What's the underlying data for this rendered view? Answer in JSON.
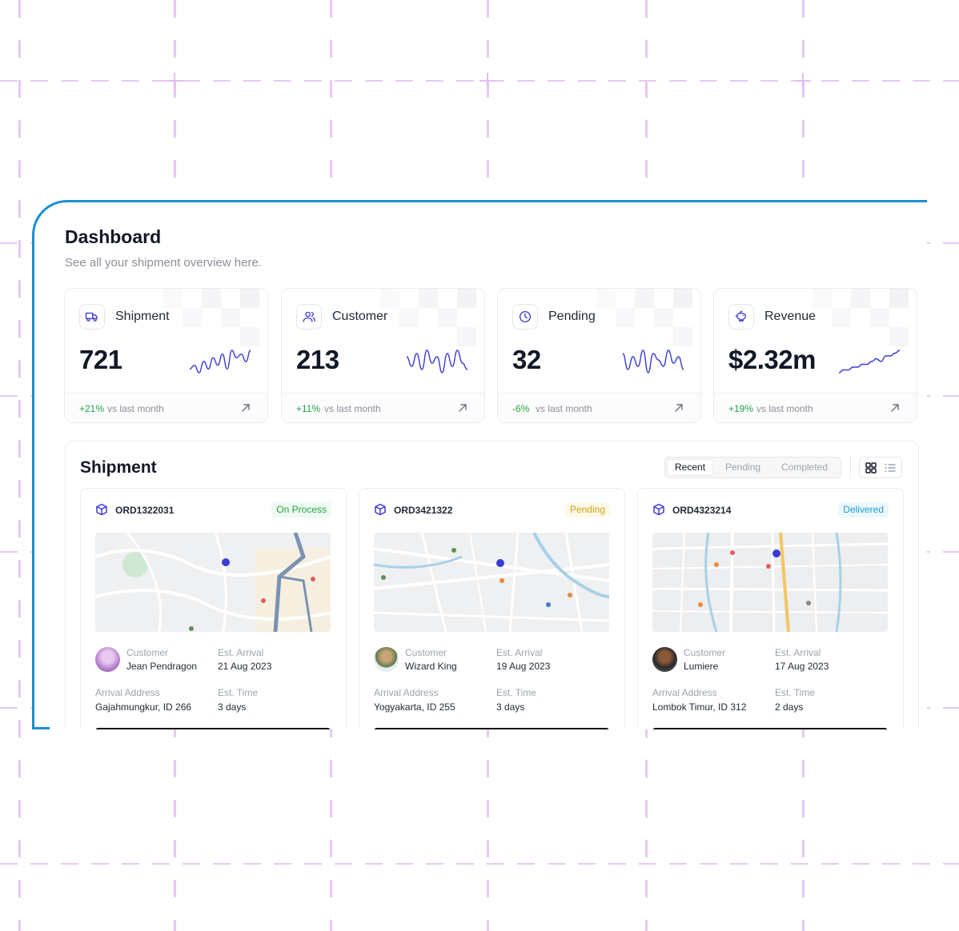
{
  "header": {
    "title": "Dashboard",
    "subtitle": "See all your shipment overview here."
  },
  "stats": [
    {
      "label": "Shipment",
      "value": "721",
      "delta": "+21%",
      "vs": "vs last month",
      "icon": "truck-icon",
      "trend": [
        6,
        5,
        7,
        4,
        6,
        3,
        5,
        2,
        6,
        1,
        3,
        2,
        4,
        1
      ]
    },
    {
      "label": "Customer",
      "value": "213",
      "delta": "+11%",
      "vs": "vs last month",
      "icon": "users-icon",
      "trend": [
        3,
        6,
        2,
        7,
        1,
        5,
        3,
        8,
        2,
        6,
        1,
        5,
        7
      ]
    },
    {
      "label": "Pending",
      "value": "32",
      "delta": "-6%",
      "vs": "vs last month",
      "icon": "clock-icon",
      "trend": [
        2,
        7,
        3,
        6,
        1,
        8,
        2,
        4,
        6,
        1,
        5,
        3,
        7
      ]
    },
    {
      "label": "Revenue",
      "value": "$2.32m",
      "delta": "+19%",
      "vs": "vs last month",
      "icon": "piggy-bank-icon",
      "trend": [
        8,
        7,
        7,
        6,
        6,
        5,
        5,
        4,
        3,
        4,
        2,
        2,
        1,
        0
      ]
    }
  ],
  "shipment_panel": {
    "title": "Shipment",
    "tabs": [
      "Recent",
      "Pending",
      "Completed"
    ],
    "active_tab": "Recent",
    "labels": {
      "customer": "Customer",
      "est_arrival": "Est. Arrival",
      "arrival_address": "Arrival Address",
      "est_time": "Est. Time"
    },
    "orders": [
      {
        "id": "ORD1322031",
        "status": "On Process",
        "status_color": "#22a447",
        "status_bg": "#effaf1",
        "customer": "Jean Pendragon",
        "est_arrival": "21 Aug 2023",
        "address": "Gajahmungkur, ID 266",
        "est_time": "3 days"
      },
      {
        "id": "ORD3421322",
        "status": "Pending",
        "status_color": "#d4a017",
        "status_bg": "#fdf8e8",
        "customer": "Wizard King",
        "est_arrival": "19 Aug 2023",
        "address": "Yogyakarta, ID 255",
        "est_time": "3 days"
      },
      {
        "id": "ORD4323214",
        "status": "Delivered",
        "status_color": "#1b9bd1",
        "status_bg": "#edf7fc",
        "customer": "Lumiere",
        "est_arrival": "17 Aug 2023",
        "address": "Lombok Timur, ID 312",
        "est_time": "2 days"
      }
    ]
  },
  "colors": {
    "accent": "#1a8fd0",
    "primary": "#3b3bd6",
    "positive": "#22a447"
  }
}
